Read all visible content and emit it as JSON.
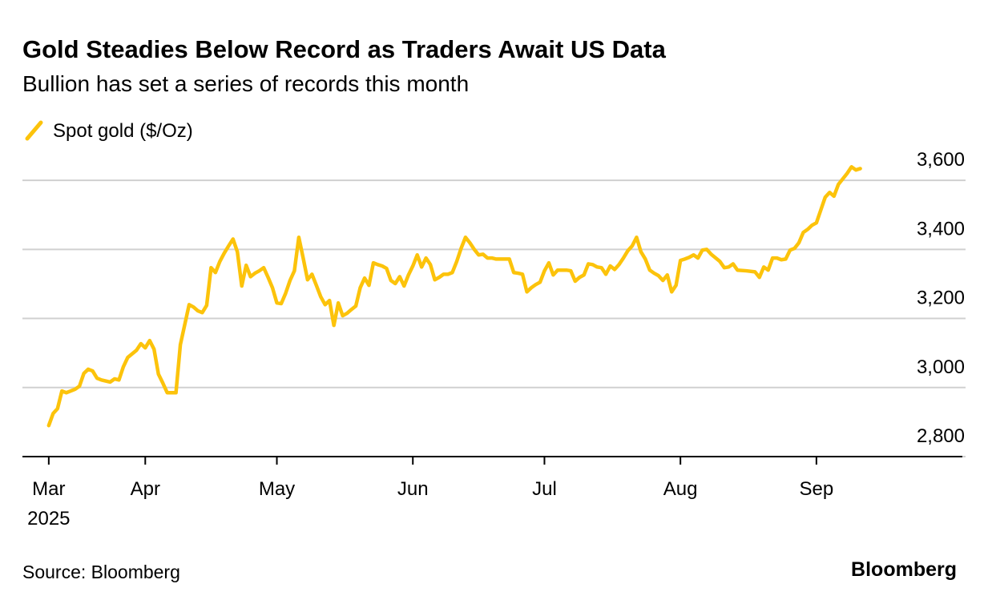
{
  "chart_data": {
    "type": "line",
    "title": "Gold Steadies Below Record as Traders Await US Data",
    "subtitle": "Bullion has set a series of records this month",
    "source": "Source: Bloomberg",
    "brand": "Bloomberg",
    "legend": "top-left",
    "grid": true,
    "xlim": [
      -6,
      209
    ],
    "xticks": [
      {
        "value": 0,
        "label": "Mar\n2025"
      },
      {
        "value": 22,
        "label": "Apr"
      },
      {
        "value": 52,
        "label": "May"
      },
      {
        "value": 83,
        "label": "Jun"
      },
      {
        "value": 113,
        "label": "Jul"
      },
      {
        "value": 144,
        "label": "Aug"
      },
      {
        "value": 175,
        "label": "Sep"
      }
    ],
    "ylim": [
      2800,
      3700
    ],
    "yticks": [
      {
        "value": 2800,
        "label": "2,800"
      },
      {
        "value": 3000,
        "label": "3,000"
      },
      {
        "value": 3200,
        "label": "3,200"
      },
      {
        "value": 3400,
        "label": "3,400"
      },
      {
        "value": 3600,
        "label": "3,600"
      }
    ],
    "x": [
      0,
      1,
      2,
      3,
      4,
      6,
      7,
      8,
      9,
      10,
      11,
      12,
      14,
      15,
      16,
      17,
      18,
      20,
      21,
      22,
      23,
      24,
      25,
      26,
      27,
      29,
      30,
      32,
      33,
      34,
      35,
      36,
      37,
      38,
      39,
      40,
      41,
      42,
      43,
      44,
      45,
      46,
      47,
      48,
      49,
      50,
      51,
      52,
      53,
      54,
      55,
      56,
      57,
      58,
      59,
      60,
      61,
      62,
      63,
      64,
      65,
      66,
      67,
      68,
      69,
      70,
      71,
      72,
      73,
      74,
      75,
      76,
      77,
      78,
      79,
      80,
      81,
      82,
      83,
      84,
      85,
      86,
      87,
      88,
      89,
      90,
      91,
      92,
      93,
      94,
      95,
      96,
      97,
      98,
      99,
      100,
      101,
      102,
      103,
      105,
      106,
      107,
      108,
      109,
      110,
      111,
      112,
      113,
      114,
      115,
      116,
      117,
      118,
      119,
      120,
      121,
      122,
      123,
      124,
      125,
      126,
      127,
      128,
      129,
      130,
      131,
      132,
      133,
      134,
      135,
      136,
      137,
      138,
      139,
      140,
      141,
      142,
      143,
      144,
      145,
      146,
      147,
      148,
      149,
      150,
      151,
      153,
      154,
      155,
      156,
      157,
      159,
      161,
      162,
      163,
      164,
      165,
      166,
      167,
      168,
      169,
      170,
      171,
      172,
      173,
      174,
      175,
      176,
      177,
      178,
      179,
      180,
      181,
      182,
      183,
      184,
      185
    ],
    "series": [
      {
        "name": "Spot gold ($/Oz)",
        "color": "#fcc30b",
        "values": [
          2890,
          2925,
          2939,
          2990,
          2985,
          2995,
          3004,
          3041,
          3053,
          3048,
          3027,
          3022,
          3016,
          3025,
          3022,
          3060,
          3087,
          3108,
          3127,
          3115,
          3136,
          3111,
          3039,
          3013,
          2985,
          2985,
          3124,
          3240,
          3233,
          3222,
          3217,
          3238,
          3347,
          3333,
          3365,
          3389,
          3410,
          3430,
          3393,
          3294,
          3354,
          3321,
          3331,
          3338,
          3347,
          3319,
          3289,
          3245,
          3243,
          3273,
          3310,
          3338,
          3435,
          3375,
          3312,
          3328,
          3296,
          3263,
          3240,
          3252,
          3180,
          3245,
          3208,
          3215,
          3226,
          3236,
          3289,
          3317,
          3296,
          3361,
          3356,
          3352,
          3345,
          3310,
          3301,
          3321,
          3294,
          3326,
          3352,
          3384,
          3349,
          3375,
          3356,
          3312,
          3319,
          3328,
          3328,
          3333,
          3365,
          3403,
          3435,
          3419,
          3400,
          3384,
          3386,
          3375,
          3375,
          3372,
          3372,
          3372,
          3333,
          3331,
          3328,
          3277,
          3289,
          3298,
          3305,
          3338,
          3361,
          3326,
          3340,
          3340,
          3340,
          3338,
          3308,
          3319,
          3326,
          3358,
          3356,
          3349,
          3347,
          3328,
          3352,
          3342,
          3356,
          3375,
          3396,
          3410,
          3435,
          3393,
          3372,
          3340,
          3331,
          3324,
          3310,
          3326,
          3277,
          3296,
          3368,
          3372,
          3377,
          3384,
          3375,
          3398,
          3400,
          3386,
          3365,
          3347,
          3349,
          3358,
          3340,
          3338,
          3335,
          3319,
          3349,
          3340,
          3375,
          3375,
          3370,
          3372,
          3398,
          3403,
          3419,
          3449,
          3458,
          3470,
          3477,
          3514,
          3551,
          3565,
          3554,
          3588,
          3604,
          3620,
          3639,
          3630,
          3634
        ]
      }
    ]
  }
}
